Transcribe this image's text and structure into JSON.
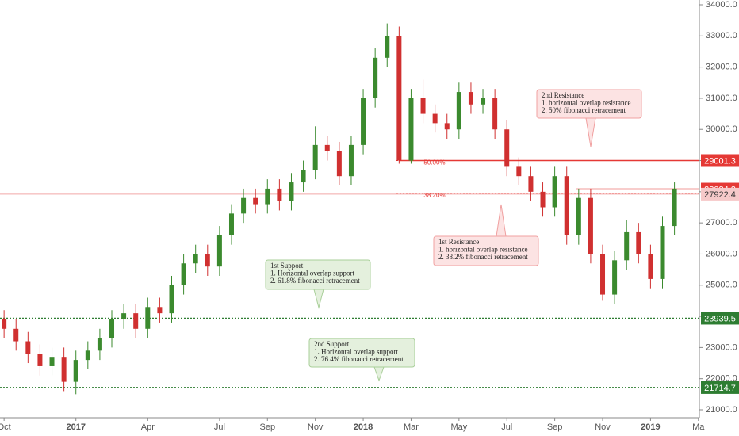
{
  "chart_data": {
    "type": "candlestick",
    "x": [
      0,
      0.5,
      1,
      1.5,
      2,
      2.5,
      3,
      3.5,
      4,
      4.5,
      5,
      5.5,
      6,
      6.5,
      7,
      7.5,
      8,
      8.5,
      9,
      9.5,
      10,
      10.5,
      11,
      11.5,
      12,
      12.5,
      13,
      13.5,
      14,
      14.5,
      15,
      15.5,
      16,
      16.5,
      17,
      17.5,
      18,
      18.5,
      19,
      19.5,
      20,
      20.5,
      21,
      21.5,
      22,
      22.5,
      23,
      23.5,
      24,
      24.5,
      25,
      25.5,
      26,
      26.5,
      27,
      27.5,
      28
    ],
    "open": [
      23900,
      23600,
      23200,
      22800,
      22400,
      22700,
      21900,
      22600,
      22900,
      23300,
      23900,
      24100,
      23600,
      24300,
      24100,
      25000,
      25700,
      26000,
      25600,
      26600,
      27300,
      27800,
      27600,
      28100,
      27700,
      28300,
      28700,
      29500,
      29300,
      28500,
      29500,
      31000,
      32300,
      33000,
      29000,
      31000,
      30500,
      30200,
      30000,
      31200,
      30800,
      31000,
      30000,
      28800,
      28500,
      28000,
      27500,
      28500,
      26600,
      27800,
      26000,
      24700,
      25800,
      26700,
      26000,
      25200,
      26900
    ],
    "high": [
      24200,
      23900,
      23500,
      23100,
      23000,
      23000,
      22900,
      23200,
      23600,
      24200,
      24400,
      24400,
      24600,
      24600,
      25300,
      26000,
      26300,
      26300,
      26900,
      27600,
      28100,
      28100,
      28400,
      28400,
      28600,
      29000,
      30100,
      29800,
      29600,
      29800,
      31300,
      32600,
      33400,
      33300,
      31300,
      31600,
      30800,
      30500,
      31500,
      31500,
      31300,
      31300,
      30300,
      29100,
      28800,
      28300,
      28800,
      28800,
      28100,
      28100,
      26300,
      26100,
      27100,
      27000,
      26300,
      27200,
      28300
    ],
    "low": [
      23300,
      22900,
      22500,
      22100,
      22100,
      21600,
      21500,
      22300,
      22600,
      23000,
      23600,
      23300,
      23300,
      23800,
      23800,
      24700,
      25400,
      25300,
      25300,
      26300,
      27000,
      27300,
      27300,
      27400,
      27400,
      28000,
      28400,
      29000,
      28200,
      28200,
      29200,
      30700,
      32000,
      28900,
      28900,
      30200,
      29900,
      29700,
      29700,
      30500,
      30500,
      29700,
      28500,
      28200,
      27700,
      27200,
      27200,
      26300,
      26300,
      25700,
      24500,
      24400,
      25500,
      25700,
      24900,
      24900,
      26600
    ],
    "close": [
      23600,
      23200,
      22800,
      22400,
      22700,
      21900,
      22600,
      22900,
      23300,
      23900,
      24100,
      23600,
      24300,
      24100,
      25000,
      25700,
      26000,
      25600,
      26600,
      27300,
      27800,
      27600,
      28100,
      27700,
      28300,
      28700,
      29500,
      29300,
      28500,
      29500,
      31000,
      32300,
      33000,
      29000,
      31000,
      30500,
      30200,
      30000,
      31200,
      30800,
      31000,
      30000,
      28800,
      28500,
      28000,
      27500,
      28500,
      26600,
      27800,
      26000,
      24700,
      25800,
      26700,
      26000,
      25200,
      26900,
      28100
    ],
    "up_color": "#3b8a2e",
    "down_color": "#d03030",
    "xlim": [
      -0.17,
      29.04
    ],
    "xticks": [
      {
        "value": 0,
        "label": "Oct"
      },
      {
        "value": 3,
        "label": "2017"
      },
      {
        "value": 6,
        "label": "Apr"
      },
      {
        "value": 9,
        "label": "Jul"
      },
      {
        "value": 11,
        "label": "Sep"
      },
      {
        "value": 13,
        "label": "Nov"
      },
      {
        "value": 15,
        "label": "2018"
      },
      {
        "value": 17,
        "label": "Mar"
      },
      {
        "value": 19,
        "label": "May"
      },
      {
        "value": 21,
        "label": "Jul"
      },
      {
        "value": 23,
        "label": "Sep"
      },
      {
        "value": 25,
        "label": "Nov"
      },
      {
        "value": 27,
        "label": "2019"
      },
      {
        "value": 29,
        "label": "Ma"
      }
    ],
    "ylim": [
      21000,
      34000
    ],
    "yticks": [
      {
        "value": 21000,
        "label": "21000.0"
      },
      {
        "value": 22000,
        "label": "22000.0"
      },
      {
        "value": 23000,
        "label": "23000.0"
      },
      {
        "value": 24000,
        "label": "24000.0"
      },
      {
        "value": 25000,
        "label": "25000.0"
      },
      {
        "value": 26000,
        "label": "26000.0"
      },
      {
        "value": 27000,
        "label": "27000.0"
      },
      {
        "value": 28000,
        "label": "28000.0"
      },
      {
        "value": 29000,
        "label": "29000.0"
      },
      {
        "value": 30000,
        "label": "30000.0"
      },
      {
        "value": 31000,
        "label": "31000.0"
      },
      {
        "value": 32000,
        "label": "32000.0"
      },
      {
        "value": 33000,
        "label": "33000.0"
      },
      {
        "value": 34000,
        "label": "34000.0"
      }
    ],
    "levels": [
      {
        "value": 29001.3,
        "color": "#e53935",
        "x_start": 16.5
      },
      {
        "value": 28084.2,
        "color": "#e53935",
        "x_start": 23.9
      },
      {
        "value": 27922.4,
        "color": "#f2a7a7",
        "x_start": -0.17
      },
      {
        "value": 23939.5,
        "color": "#2e7d32",
        "x_start": -0.17
      },
      {
        "value": 21714.7,
        "color": "#2e7d32",
        "x_start": -0.17
      }
    ],
    "fibs": [
      {
        "label": "50.00%",
        "value": 29001.3
      },
      {
        "label": "38.20%",
        "value": 27950
      }
    ],
    "annotations": [
      {
        "lines": [
          "2nd Resistance",
          "1. horizontal overlap resistance",
          "2. 50% fibonacci retracement"
        ]
      },
      {
        "lines": [
          "1st Resistance",
          "1. horizontal overlap resistance",
          "2. 38.2% fibonacci retracement"
        ]
      },
      {
        "lines": [
          "1st Support",
          "1. Horizontal overlap support",
          "2. 61.8% fibonacci retracement"
        ]
      },
      {
        "lines": [
          "2nd Support",
          "1. Horizontal overlap support",
          "2. 76.4% fibonacci retracement"
        ]
      }
    ]
  }
}
